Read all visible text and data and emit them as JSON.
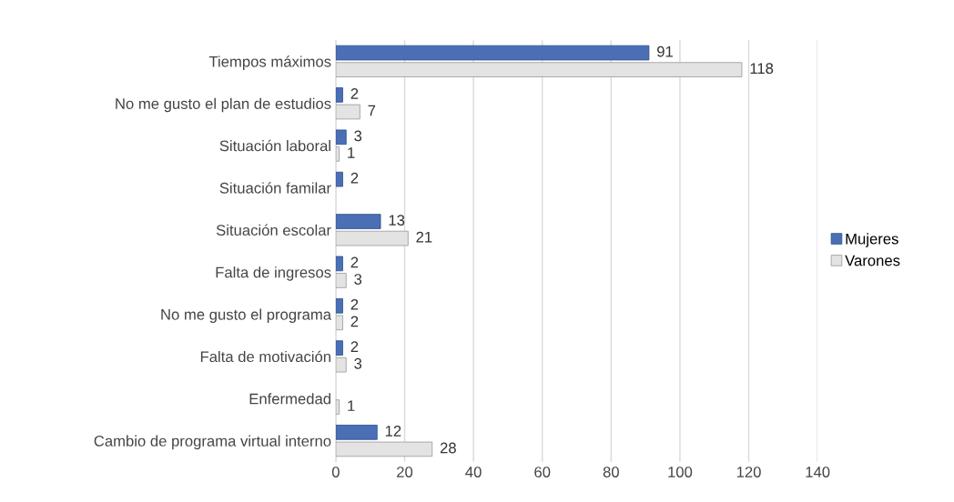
{
  "chart_data": {
    "type": "bar",
    "orientation": "horizontal",
    "categories": [
      "Tiempos máximos",
      "No me gusto el plan de estudios",
      "Situación laboral",
      "Situación familar",
      "Situación escolar",
      "Falta de ingresos",
      "No me gusto el programa",
      "Falta de motivación",
      "Enfermedad",
      "Cambio de programa virtual interno"
    ],
    "series": [
      {
        "name": "Mujeres",
        "color": "#4a6fb5",
        "values": [
          91,
          2,
          3,
          2,
          13,
          2,
          2,
          2,
          null,
          12
        ]
      },
      {
        "name": "Varones",
        "color": "#e3e3e3",
        "values": [
          118,
          7,
          1,
          null,
          21,
          3,
          2,
          3,
          1,
          28
        ]
      }
    ],
    "xlim": [
      0,
      140
    ],
    "xticks": [
      0,
      20,
      40,
      60,
      80,
      100,
      120,
      140
    ],
    "grid": "x",
    "legend": "right",
    "data_labels": true
  }
}
